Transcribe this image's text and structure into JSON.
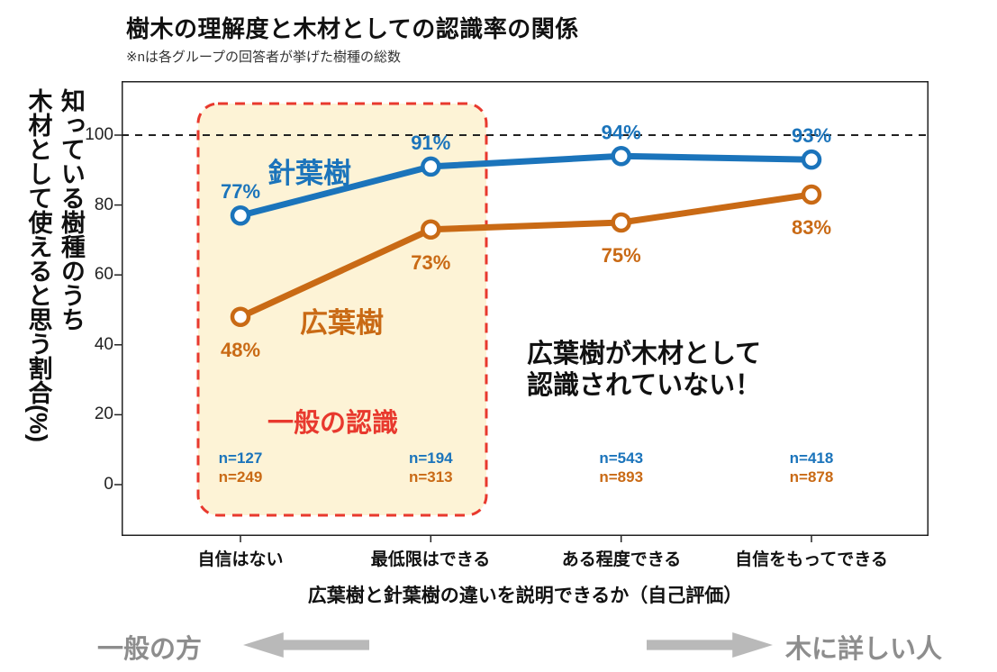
{
  "header": {
    "title": "樹木の理解度と木材としての認識率の関係",
    "subtitle": "※nは各グループの回答者が挙げた樹種の総数"
  },
  "chart_data": {
    "type": "line",
    "title": "樹木の理解度と木材としての認識率の関係",
    "categories": [
      "自信はない",
      "最低限はできる",
      "ある程度できる",
      "自信をもってできる"
    ],
    "series": [
      {
        "name": "針葉樹",
        "color": "#1b74bb",
        "values": [
          77,
          91,
          94,
          93
        ],
        "n": [
          127,
          194,
          543,
          418
        ],
        "label_position": "above"
      },
      {
        "name": "広葉樹",
        "color": "#c96a15",
        "values": [
          48,
          73,
          75,
          83
        ],
        "n": [
          249,
          313,
          893,
          878
        ],
        "label_position": "below"
      }
    ],
    "ylabel": "知っている樹種のうち\n木材として使えると思う割合(%)",
    "xlabel": "広葉樹と針葉樹の違いを説明できるか（自己評価）",
    "yticks": [
      0,
      20,
      40,
      60,
      80,
      100
    ],
    "ylim": [
      0,
      108
    ],
    "ref_line": 100,
    "grid": false,
    "legend": "inline-series-labels"
  },
  "annotations": {
    "highlight_label": "一般の認識",
    "highlight_border_color": "#e8392e",
    "highlight_fill_color": "#fdf3d6",
    "callout": "広葉樹が木材として\n認識されていない！"
  },
  "footer": {
    "left_label": "一般の方",
    "right_label": "木に詳しい人",
    "arrow_color": "#b9b9b9"
  }
}
